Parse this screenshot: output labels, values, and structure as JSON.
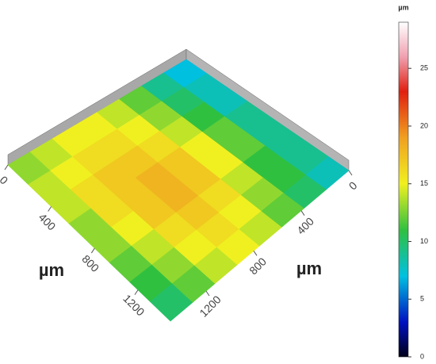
{
  "chart_data": {
    "type": "surface3d",
    "xlabel": "µm",
    "ylabel": "µm",
    "xlim": [
      0,
      1500
    ],
    "xticks": [
      0,
      400,
      800,
      1200
    ],
    "ylim": [
      0,
      1500
    ],
    "yticks": [
      0,
      400,
      800,
      1200
    ],
    "z": [
      [
        13,
        14,
        15,
        15,
        14,
        12,
        9,
        7
      ],
      [
        14,
        15,
        16,
        16,
        15,
        13,
        10,
        8
      ],
      [
        14,
        16,
        17,
        17,
        16,
        14,
        11,
        8
      ],
      [
        13,
        16,
        17,
        18,
        17,
        15,
        12,
        9
      ],
      [
        13,
        15,
        17,
        18,
        17,
        15,
        12,
        9
      ],
      [
        12,
        14,
        16,
        17,
        16,
        14,
        11,
        9
      ],
      [
        11,
        13,
        15,
        16,
        15,
        13,
        11,
        9
      ],
      [
        10,
        12,
        14,
        15,
        14,
        12,
        10,
        8
      ]
    ],
    "colorbar": {
      "label": "µm",
      "lim": [
        0,
        29
      ],
      "ticks": [
        0,
        5,
        10,
        15,
        20,
        25
      ]
    },
    "colormap": [
      {
        "value": 0,
        "color": "#000018"
      },
      {
        "value": 3,
        "color": "#0010c0"
      },
      {
        "value": 7,
        "color": "#00c0e0"
      },
      {
        "value": 11,
        "color": "#30c040"
      },
      {
        "value": 15,
        "color": "#f0f020"
      },
      {
        "value": 19,
        "color": "#f0a020"
      },
      {
        "value": 23,
        "color": "#e02010"
      },
      {
        "value": 26,
        "color": "#f0a0b0"
      },
      {
        "value": 29,
        "color": "#ffffff"
      }
    ]
  }
}
